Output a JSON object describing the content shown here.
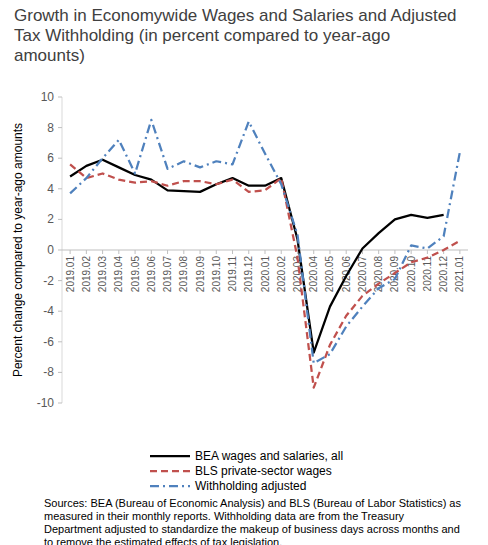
{
  "chart_data": {
    "type": "line",
    "title": "Growth in Economywide Wages and Salaries and Adjusted Tax Withholding  (in percent compared to year-ago amounts)",
    "y_label": "Percent change compared to year-ago amounts",
    "note": "Sources:  BEA (Bureau of Economic Analysis) and BLS (Bureau of Labor Statistics) as measured in their monthly reports. Withholding data are from the Treasury Department adjusted to standardize the makeup of business days across months and to remove the estimated effects of tax legislation.",
    "categories": [
      "2019.01",
      "2019.02",
      "2019.03",
      "2019.04",
      "2019.05",
      "2019.06",
      "2019.07",
      "2019.08",
      "2019.09",
      "2019.10",
      "2019.11",
      "2019.12",
      "2020.01",
      "2020.02",
      "2020.03",
      "2020.04",
      "2020.05",
      "2020.06",
      "2020.07",
      "2020.08",
      "2020.09",
      "2020.10",
      "2020.11",
      "2020.12",
      "2021.01"
    ],
    "series": [
      {
        "name": "BEA wages and salaries, all",
        "color": "#000000",
        "line_style": "solid",
        "values": [
          4.8,
          5.5,
          5.9,
          5.4,
          4.9,
          4.6,
          3.9,
          3.85,
          3.8,
          4.3,
          4.7,
          4.2,
          4.2,
          4.7,
          0.7,
          -6.7,
          -3.7,
          -1.7,
          0.1,
          1.1,
          2.0,
          2.3,
          2.1,
          2.3,
          null
        ]
      },
      {
        "name": "BLS private-sector wages",
        "color": "#c0504d",
        "line_style": "dashed",
        "values": [
          5.6,
          4.7,
          5.0,
          4.6,
          4.4,
          4.5,
          4.2,
          4.5,
          4.5,
          4.3,
          4.6,
          3.8,
          3.9,
          4.7,
          -0.5,
          -9.0,
          -6.2,
          -4.3,
          -3.0,
          -2.2,
          -1.5,
          -0.8,
          -0.5,
          0.0,
          0.6
        ]
      },
      {
        "name": "Withholding adjusted",
        "color": "#4f81bd",
        "line_style": "dash_dot",
        "values": [
          3.7,
          4.7,
          6.0,
          7.2,
          5.0,
          8.5,
          5.3,
          5.8,
          5.4,
          5.8,
          5.6,
          8.4,
          6.3,
          4.3,
          1.0,
          -7.4,
          -6.8,
          -5.0,
          -3.7,
          -2.5,
          -1.9,
          0.3,
          0.1,
          0.9,
          6.4
        ]
      }
    ],
    "ylim": [
      -10,
      10
    ],
    "yticks": [
      -10,
      -8,
      -6,
      -4,
      -2,
      0,
      2,
      4,
      6,
      8,
      10
    ],
    "grid": false,
    "legend": "bottom"
  }
}
